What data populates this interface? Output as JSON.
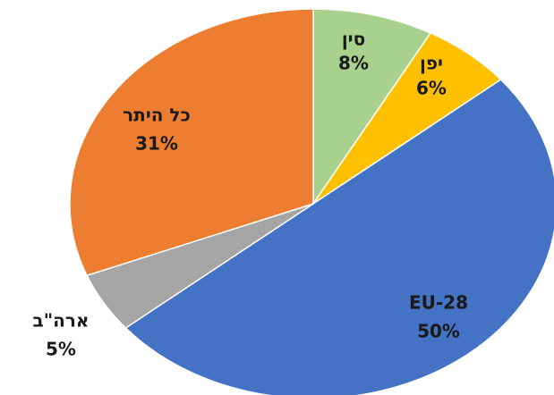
{
  "chart_data": {
    "type": "pie",
    "categories": [
      "סין",
      "יפן",
      "EU-28",
      "ארה\"ב",
      "כל היתר"
    ],
    "values": [
      8,
      6,
      50,
      5,
      31
    ],
    "value_labels": [
      "8%",
      "6%",
      "50%",
      "5%",
      "31%"
    ],
    "colors": [
      "#a9d18e",
      "#ffc000",
      "#4472c4",
      "#a5a5a5",
      "#ed7d31"
    ]
  }
}
